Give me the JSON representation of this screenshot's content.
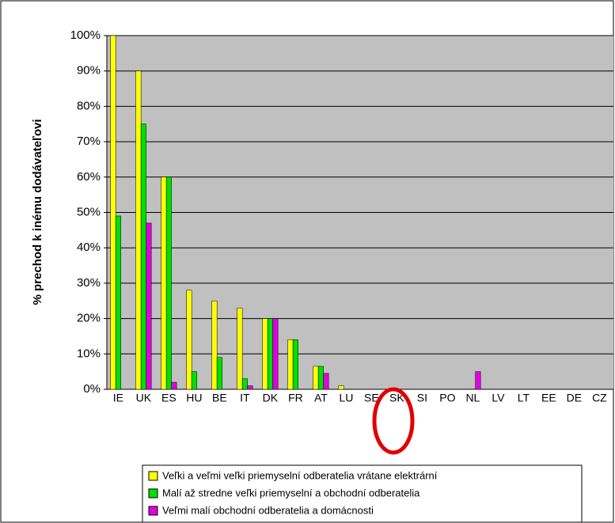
{
  "chart_data": {
    "type": "bar",
    "y_label": "% prechod k inému dodávateľovi",
    "categories": [
      "IE",
      "UK",
      "ES",
      "HU",
      "BE",
      "IT",
      "DK",
      "FR",
      "AT",
      "LU",
      "SE",
      "SK",
      "SI",
      "PO",
      "NL",
      "LV",
      "LT",
      "EE",
      "DE",
      "CZ"
    ],
    "series": [
      {
        "name": "Veľki a veľmi veľki priemyselní odberatelia vrátane elektrární",
        "color": "#ffff00",
        "values": [
          100,
          90,
          60,
          28,
          25,
          23,
          20,
          14,
          6.5,
          1,
          0,
          0,
          0,
          0,
          0,
          0,
          0,
          0,
          0,
          0
        ]
      },
      {
        "name": "Malí až stredne veľki priemyselní a obchodní odberatelia",
        "color": "#00e000",
        "values": [
          49,
          75,
          60,
          5,
          9,
          3,
          20,
          14,
          6.5,
          0,
          0,
          0,
          0,
          0,
          0,
          0,
          0,
          0,
          0,
          0
        ]
      },
      {
        "name": "Veľmi malí obchodní odberatelia a domácnosti",
        "color": "#e000e0",
        "values": [
          0,
          47,
          2,
          0,
          0,
          1,
          20,
          0,
          4.5,
          0,
          0,
          0,
          0,
          0,
          5,
          0,
          0,
          0,
          0,
          0
        ]
      }
    ],
    "ylim": [
      0,
      100
    ],
    "yticks": [
      {
        "value": 0,
        "label": "0%"
      },
      {
        "value": 10,
        "label": "10%"
      },
      {
        "value": 20,
        "label": "20%"
      },
      {
        "value": 30,
        "label": "30%"
      },
      {
        "value": 40,
        "label": "40%"
      },
      {
        "value": 50,
        "label": "50%"
      },
      {
        "value": 60,
        "label": "60%"
      },
      {
        "value": 70,
        "label": "70%"
      },
      {
        "value": 80,
        "label": "80%"
      },
      {
        "value": 90,
        "label": "90%"
      },
      {
        "value": 100,
        "label": "100%"
      }
    ],
    "grid": true
  }
}
